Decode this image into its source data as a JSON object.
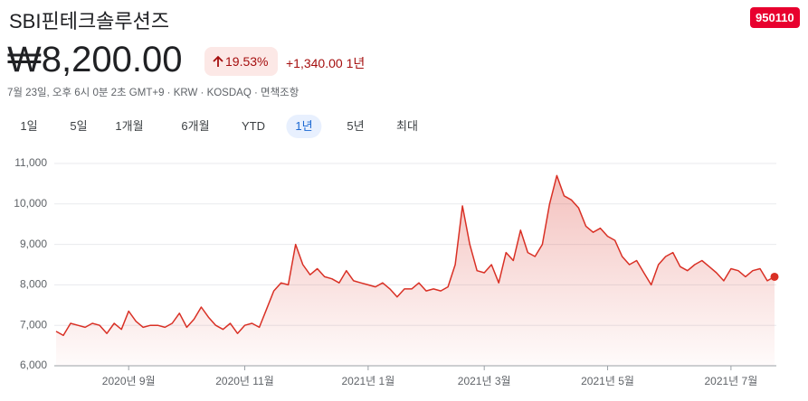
{
  "header": {
    "title": "SBI핀테크솔루션즈",
    "ticker": "950110",
    "price": "₩8,200.00",
    "change_percent": "19.53%",
    "change": "+1,340.00",
    "change_period": "1년",
    "timestamp": "7월 23일, 오후 6시 0분 2초 GMT+9",
    "currency": "KRW",
    "exchange": "KOSDAQ",
    "disclaimer": "면책조항"
  },
  "tabs": [
    "1일",
    "5일",
    "1개월",
    "6개월",
    "YTD",
    "1년",
    "5년",
    "최대"
  ],
  "chart_data": {
    "type": "line",
    "color": "#d93025",
    "grid": true,
    "ylim": [
      6000,
      11000
    ],
    "yticks": [
      {
        "value": 6000,
        "label": "6,000"
      },
      {
        "value": 7000,
        "label": "7,000"
      },
      {
        "value": 8000,
        "label": "8,000"
      },
      {
        "value": 9000,
        "label": "9,000"
      },
      {
        "value": 10000,
        "label": "10,000"
      },
      {
        "value": 11000,
        "label": "11,000"
      }
    ],
    "categories": [
      null,
      null,
      null,
      null,
      null,
      null,
      null,
      null,
      null,
      null,
      "2020년 9월",
      null,
      null,
      null,
      null,
      null,
      null,
      null,
      null,
      null,
      null,
      null,
      null,
      null,
      null,
      null,
      "2020년 11월",
      null,
      null,
      null,
      null,
      null,
      null,
      null,
      null,
      null,
      null,
      null,
      null,
      null,
      null,
      null,
      null,
      "2021년 1월",
      null,
      null,
      null,
      null,
      null,
      null,
      null,
      null,
      null,
      null,
      null,
      null,
      null,
      null,
      null,
      "2021년 3월",
      null,
      null,
      null,
      null,
      null,
      null,
      null,
      null,
      null,
      null,
      null,
      null,
      null,
      null,
      null,
      null,
      "2021년 5월",
      null,
      null,
      null,
      null,
      null,
      null,
      null,
      null,
      null,
      null,
      null,
      null,
      null,
      null,
      null,
      null,
      "2021년 7월",
      null,
      null,
      null,
      null,
      null,
      null
    ],
    "values": [
      6850,
      6750,
      7050,
      7000,
      6950,
      7050,
      7000,
      6800,
      7050,
      6900,
      7350,
      7100,
      6950,
      7000,
      7000,
      6950,
      7050,
      7300,
      6950,
      7150,
      7450,
      7200,
      7000,
      6900,
      7050,
      6800,
      7000,
      7050,
      6950,
      7400,
      7850,
      8050,
      8000,
      9000,
      8500,
      8250,
      8400,
      8200,
      8150,
      8050,
      8350,
      8100,
      8050,
      8000,
      7950,
      8050,
      7900,
      7700,
      7900,
      7900,
      8050,
      7850,
      7900,
      7850,
      7950,
      8500,
      9950,
      9000,
      8350,
      8300,
      8500,
      8050,
      8800,
      8600,
      9350,
      8800,
      8700,
      9000,
      10000,
      10700,
      10200,
      10100,
      9900,
      9450,
      9300,
      9400,
      9200,
      9100,
      8700,
      8500,
      8600,
      8300,
      8000,
      8500,
      8700,
      8800,
      8450,
      8350,
      8500,
      8600,
      8450,
      8300,
      8100,
      8400,
      8350,
      8200,
      8350,
      8400,
      8100,
      8200
    ]
  }
}
